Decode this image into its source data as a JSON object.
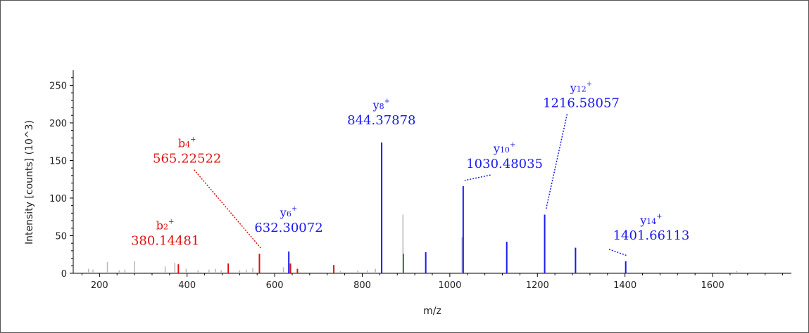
{
  "chart_data": {
    "type": "bar",
    "xlabel": "m/z",
    "ylabel": "Intensity [counts] (10^3)",
    "xlim": [
      140,
      1780
    ],
    "ylim": [
      0,
      270
    ],
    "x_ticks": [
      200,
      400,
      600,
      800,
      1000,
      1200,
      1400,
      1600
    ],
    "y_ticks": [
      0,
      50,
      100,
      150,
      200,
      250
    ],
    "grid": false,
    "colors": {
      "b_ion": "#dd1111",
      "y_ion": "#1a1aee",
      "other_ion": "#2a8a2a",
      "unassigned": "#b8b8b8"
    },
    "peaks": [
      {
        "x": 175,
        "y": 6,
        "cls": "unassigned"
      },
      {
        "x": 185,
        "y": 5,
        "cls": "unassigned"
      },
      {
        "x": 218,
        "y": 15,
        "cls": "unassigned"
      },
      {
        "x": 245,
        "y": 4,
        "cls": "unassigned"
      },
      {
        "x": 258,
        "y": 5,
        "cls": "unassigned"
      },
      {
        "x": 280,
        "y": 16,
        "cls": "unassigned"
      },
      {
        "x": 350,
        "y": 9,
        "cls": "unassigned"
      },
      {
        "x": 372,
        "y": 14,
        "cls": "unassigned"
      },
      {
        "x": 380.14,
        "y": 12,
        "cls": "b_ion"
      },
      {
        "x": 398,
        "y": 6,
        "cls": "unassigned"
      },
      {
        "x": 425,
        "y": 4,
        "cls": "unassigned"
      },
      {
        "x": 450,
        "y": 5,
        "cls": "unassigned"
      },
      {
        "x": 465,
        "y": 6,
        "cls": "unassigned"
      },
      {
        "x": 478,
        "y": 4,
        "cls": "unassigned"
      },
      {
        "x": 494,
        "y": 13,
        "cls": "b_ion"
      },
      {
        "x": 520,
        "y": 4,
        "cls": "unassigned"
      },
      {
        "x": 535,
        "y": 5,
        "cls": "unassigned"
      },
      {
        "x": 550,
        "y": 7,
        "cls": "unassigned"
      },
      {
        "x": 565.23,
        "y": 26,
        "cls": "b_ion"
      },
      {
        "x": 620,
        "y": 8,
        "cls": "unassigned"
      },
      {
        "x": 632.3,
        "y": 29,
        "cls": "y_ion"
      },
      {
        "x": 636,
        "y": 13,
        "cls": "b_ion"
      },
      {
        "x": 652,
        "y": 6,
        "cls": "b_ion"
      },
      {
        "x": 735,
        "y": 11,
        "cls": "b_ion"
      },
      {
        "x": 750,
        "y": 3,
        "cls": "unassigned"
      },
      {
        "x": 790,
        "y": 4,
        "cls": "unassigned"
      },
      {
        "x": 812,
        "y": 4,
        "cls": "unassigned"
      },
      {
        "x": 830,
        "y": 6,
        "cls": "unassigned"
      },
      {
        "x": 844.38,
        "y": 174,
        "cls": "y_ion"
      },
      {
        "x": 893,
        "y": 78,
        "cls": "unassigned"
      },
      {
        "x": 894,
        "y": 26,
        "cls": "other_ion"
      },
      {
        "x": 945,
        "y": 28,
        "cls": "y_ion"
      },
      {
        "x": 1028,
        "y": 48,
        "cls": "unassigned"
      },
      {
        "x": 1030.48,
        "y": 116,
        "cls": "y_ion"
      },
      {
        "x": 1130,
        "y": 42,
        "cls": "y_ion"
      },
      {
        "x": 1216.58,
        "y": 78,
        "cls": "y_ion"
      },
      {
        "x": 1287,
        "y": 34,
        "cls": "y_ion"
      },
      {
        "x": 1401.66,
        "y": 16,
        "cls": "y_ion"
      },
      {
        "x": 1655,
        "y": 3,
        "cls": "unassigned"
      }
    ],
    "annotations": [
      {
        "ion": "b",
        "sub": "2",
        "charge": "+",
        "mz": "380.14481",
        "cls": "b_ion",
        "anchor_x": 380.14,
        "label_y": 38,
        "label_x_mz": 350,
        "leader": false
      },
      {
        "ion": "b",
        "sub": "4",
        "charge": "+",
        "mz": "565.22522",
        "cls": "b_ion",
        "anchor_x": 565.23,
        "label_y": 147,
        "label_x_mz": 400,
        "leader": true
      },
      {
        "ion": "y",
        "sub": "6",
        "charge": "+",
        "mz": "632.30072",
        "cls": "y_ion",
        "anchor_x": 632.3,
        "label_y": 55,
        "label_x_mz": 632,
        "leader": false
      },
      {
        "ion": "y",
        "sub": "8",
        "charge": "+",
        "mz": "844.37878",
        "cls": "y_ion",
        "anchor_x": 844.38,
        "label_y": 198,
        "label_x_mz": 844,
        "leader": false
      },
      {
        "ion": "y",
        "sub": "10",
        "charge": "+",
        "mz": "1030.48035",
        "cls": "y_ion",
        "anchor_x": 1030.48,
        "label_y": 140,
        "label_x_mz": 1125,
        "leader": true
      },
      {
        "ion": "y",
        "sub": "12",
        "charge": "+",
        "mz": "1216.58057",
        "cls": "y_ion",
        "anchor_x": 1216.58,
        "label_y": 221,
        "label_x_mz": 1300,
        "leader": true
      },
      {
        "ion": "y",
        "sub": "14",
        "charge": "+",
        "mz": "1401.66113",
        "cls": "y_ion",
        "anchor_x": 1401.66,
        "label_y": 45,
        "label_x_mz": 1460,
        "leader": true
      }
    ]
  }
}
